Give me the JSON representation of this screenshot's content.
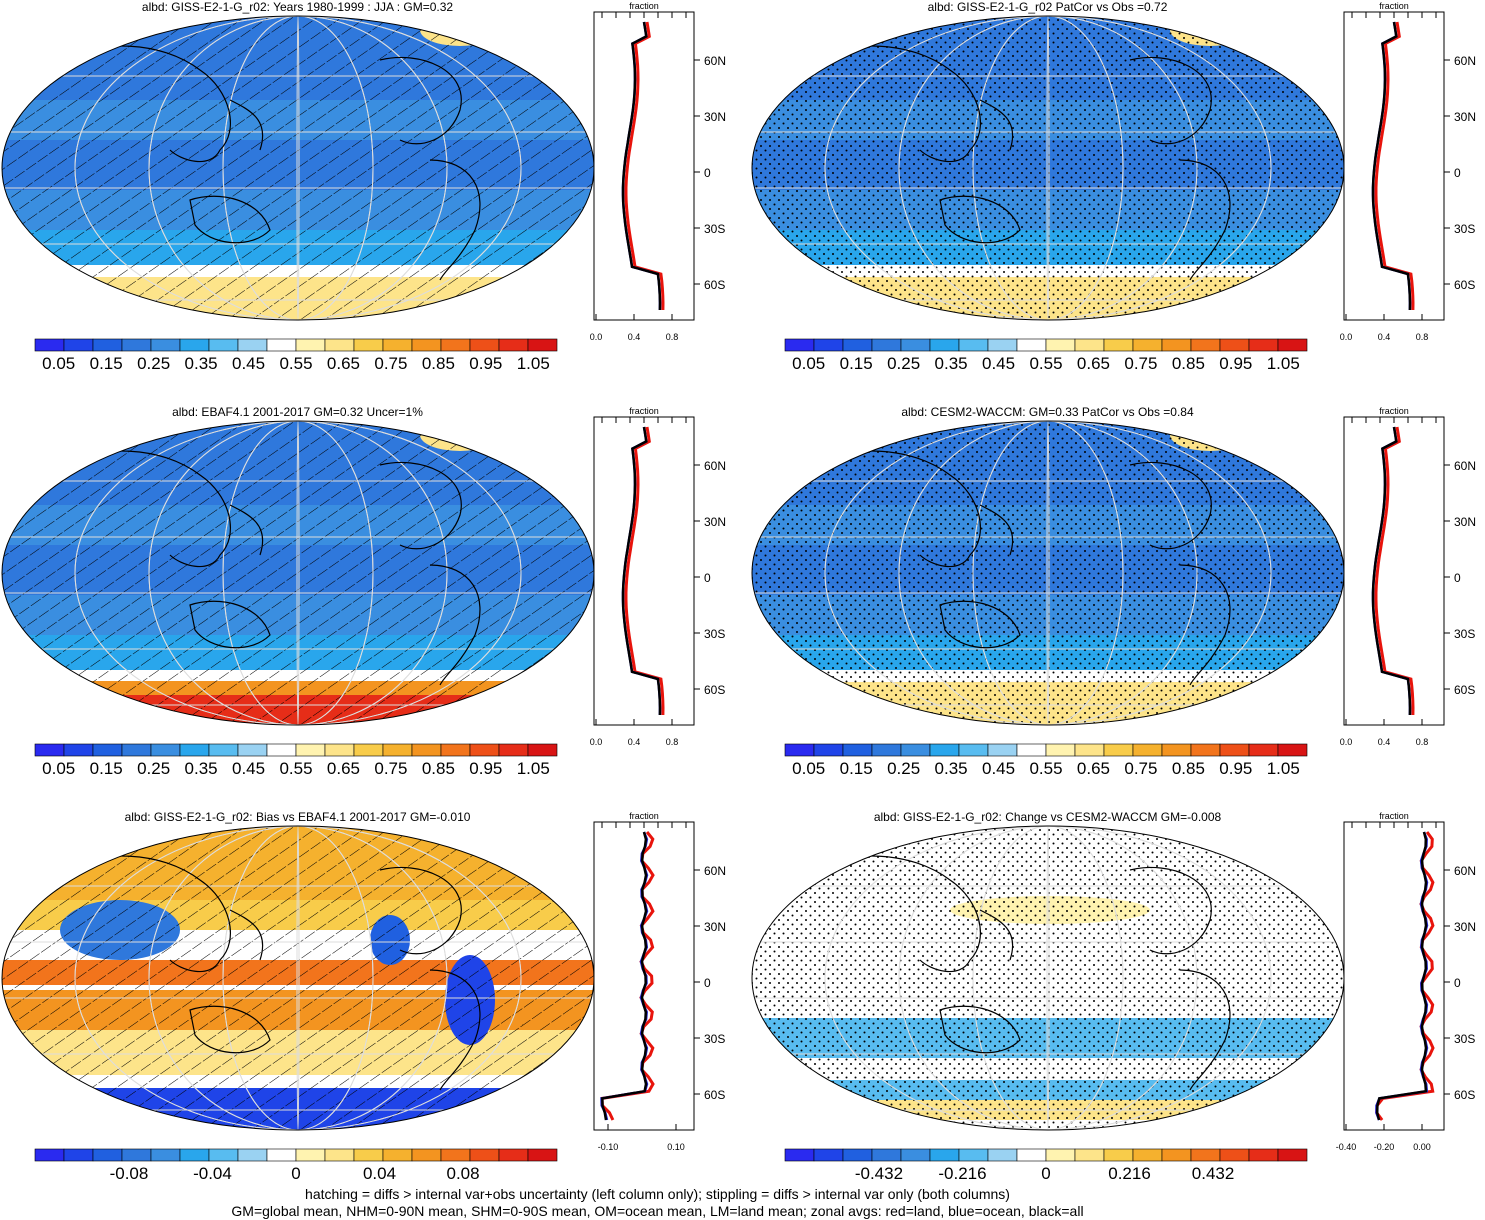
{
  "panels": [
    {
      "title": "albd: GISS-E2-1-G_r02: Years 1980-1999 : JJA : GM=0.32",
      "mode": "abs",
      "overlay": "hatch",
      "ice": "band"
    },
    {
      "title": "albd: GISS-E2-1-G_r02 PatCor vs Obs =0.72",
      "mode": "abs",
      "overlay": "stipple",
      "ice": "band"
    },
    {
      "title": "albd: EBAF4.1 2001-2017 GM=0.32 Uncer=1%",
      "mode": "abs",
      "overlay": "hatch",
      "ice": "red"
    },
    {
      "title": "albd: CESM2-WACCM: GM=0.33 PatCor vs Obs =0.84",
      "mode": "abs",
      "overlay": "stipple",
      "ice": "band"
    },
    {
      "title": "albd: GISS-E2-1-G_r02: Bias vs EBAF4.1 2001-2017 GM=-0.010",
      "mode": "bias",
      "overlay": "hatch",
      "ice": "blue"
    },
    {
      "title": "albd: GISS-E2-1-G_r02: Change vs CESM2-WACCM GM=-0.008",
      "mode": "change",
      "overlay": "stipple",
      "ice": "yellow"
    }
  ],
  "zonal_label": "fraction",
  "lat_labels": [
    "60N",
    "30N",
    "0",
    "30S",
    "60S"
  ],
  "zonal_axes": [
    {
      "ticks": [
        "0.0",
        "0.4",
        "0.8"
      ]
    },
    {
      "ticks": [
        "0.0",
        "0.4",
        "0.8"
      ]
    },
    {
      "ticks": [
        "0.0",
        "0.4",
        "0.8"
      ]
    },
    {
      "ticks": [
        "0.0",
        "0.4",
        "0.8"
      ]
    },
    {
      "ticks": [
        "-0.10",
        "0.10"
      ]
    },
    {
      "ticks": [
        "-0.40",
        "-0.20",
        "0.00"
      ]
    }
  ],
  "colorbars": [
    {
      "labels": [
        "0.05",
        "0.15",
        "0.25",
        "0.35",
        "0.45",
        "0.55",
        "0.65",
        "0.75",
        "0.85",
        "0.95",
        "1.05"
      ]
    },
    {
      "labels": [
        "0.05",
        "0.15",
        "0.25",
        "0.35",
        "0.45",
        "0.55",
        "0.65",
        "0.75",
        "0.85",
        "0.95",
        "1.05"
      ]
    },
    {
      "labels": [
        "0.05",
        "0.15",
        "0.25",
        "0.35",
        "0.45",
        "0.55",
        "0.65",
        "0.75",
        "0.85",
        "0.95",
        "1.05"
      ]
    },
    {
      "labels": [
        "0.05",
        "0.15",
        "0.25",
        "0.35",
        "0.45",
        "0.55",
        "0.65",
        "0.75",
        "0.85",
        "0.95",
        "1.05"
      ]
    },
    {
      "labels": [
        "-0.08",
        "-0.04",
        "0",
        "0.04",
        "0.08"
      ]
    },
    {
      "labels": [
        "-0.432",
        "-0.216",
        "0",
        "0.216",
        "0.432"
      ]
    }
  ],
  "palette": [
    "#2a2af0",
    "#1f44e8",
    "#2060e0",
    "#2f78dc",
    "#3a8ee0",
    "#29a6ec",
    "#58bcf0",
    "#9ad2f2",
    "#ffffff",
    "#fff3b0",
    "#fde48a",
    "#f8cc4a",
    "#f5b12e",
    "#f39420",
    "#f2741c",
    "#ee5018",
    "#e62d18",
    "#d81414"
  ],
  "footer": [
    "hatching = diffs > internal var+obs uncertainty (left column only); stippling = diffs > internal var only (both columns)",
    "GM=global mean, NHM=0-90N mean, SHM=0-90S mean, OM=ocean mean, LM=land mean; zonal avgs: red=land, blue=ocean, black=all"
  ]
}
